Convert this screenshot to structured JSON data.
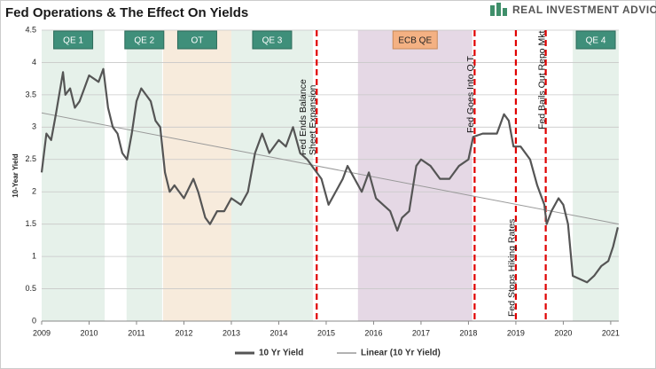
{
  "chart_data": {
    "type": "line",
    "title": "Fed Operations & The Effect On Yields",
    "logo": "REAL INVESTMENT ADVICE",
    "y_label": "10-Year Yield",
    "xlim": [
      2009,
      2021.17
    ],
    "xticks": [
      2009,
      2010,
      2011,
      2012,
      2013,
      2014,
      2015,
      2016,
      2017,
      2018,
      2019,
      2020,
      2021
    ],
    "ylim": [
      0,
      4.5
    ],
    "yticks": [
      0,
      0.5,
      1,
      1.5,
      2,
      2.5,
      3,
      3.5,
      4,
      4.5
    ],
    "grid": true,
    "regions": [
      {
        "label": "QE 1",
        "start": 2009.0,
        "end": 2010.33,
        "color": "#e6f1ea"
      },
      {
        "label": "QE 2",
        "start": 2010.79,
        "end": 2011.54,
        "color": "#e6f1ea"
      },
      {
        "label": "OT",
        "start": 2011.56,
        "end": 2013.0,
        "color": "#f7ebdc"
      },
      {
        "label": "QE 3",
        "start": 2013.0,
        "end": 2014.72,
        "color": "#e6f1ea"
      },
      {
        "label": "ECB QE",
        "start": 2015.67,
        "end": 2018.08,
        "color": "#e5d8e5"
      },
      {
        "label": "QE 4",
        "start": 2020.2,
        "end": 2021.17,
        "color": "#e6f1ea"
      }
    ],
    "events": [
      {
        "x": 2014.8,
        "lines": [
          "Fed Ends Balance",
          "Sheet Expansion"
        ]
      },
      {
        "x": 2018.13,
        "lines": [
          "Fed Goes Into Q.T."
        ]
      },
      {
        "x": 2019.0,
        "lines": [
          "Fed Stops Hiking Rates"
        ]
      },
      {
        "x": 2019.63,
        "lines": [
          "Fed Bails Out Repo Mkt"
        ]
      }
    ],
    "series": [
      {
        "name": "10 Yr Yield",
        "color": "#555555",
        "x": [
          2009.0,
          2009.1,
          2009.2,
          2009.3,
          2009.45,
          2009.5,
          2009.6,
          2009.7,
          2009.8,
          2009.9,
          2010.0,
          2010.2,
          2010.3,
          2010.4,
          2010.5,
          2010.6,
          2010.7,
          2010.8,
          2010.9,
          2011.0,
          2011.1,
          2011.2,
          2011.3,
          2011.4,
          2011.5,
          2011.6,
          2011.7,
          2011.8,
          2011.9,
          2012.0,
          2012.2,
          2012.3,
          2012.45,
          2012.55,
          2012.7,
          2012.85,
          2013.0,
          2013.2,
          2013.35,
          2013.5,
          2013.65,
          2013.8,
          2014.0,
          2014.15,
          2014.3,
          2014.45,
          2014.6,
          2014.8,
          2014.9,
          2015.05,
          2015.2,
          2015.35,
          2015.45,
          2015.6,
          2015.75,
          2015.9,
          2016.05,
          2016.2,
          2016.35,
          2016.5,
          2016.6,
          2016.75,
          2016.9,
          2017.0,
          2017.2,
          2017.4,
          2017.6,
          2017.8,
          2018.0,
          2018.1,
          2018.3,
          2018.45,
          2018.6,
          2018.75,
          2018.85,
          2018.95,
          2019.1,
          2019.3,
          2019.45,
          2019.6,
          2019.65,
          2019.75,
          2019.9,
          2020.0,
          2020.1,
          2020.2,
          2020.35,
          2020.5,
          2020.65,
          2020.8,
          2020.95,
          2021.05,
          2021.15
        ],
        "values": [
          2.3,
          2.9,
          2.8,
          3.2,
          3.85,
          3.5,
          3.6,
          3.3,
          3.4,
          3.6,
          3.8,
          3.7,
          3.9,
          3.3,
          3.0,
          2.9,
          2.6,
          2.5,
          2.9,
          3.4,
          3.6,
          3.5,
          3.4,
          3.1,
          3.0,
          2.3,
          2.0,
          2.1,
          2.0,
          1.9,
          2.2,
          2.0,
          1.6,
          1.5,
          1.7,
          1.7,
          1.9,
          1.8,
          2.0,
          2.6,
          2.9,
          2.6,
          2.8,
          2.7,
          3.0,
          2.6,
          2.5,
          2.3,
          2.2,
          1.8,
          2.0,
          2.2,
          2.4,
          2.2,
          2.0,
          2.3,
          1.9,
          1.8,
          1.7,
          1.4,
          1.6,
          1.7,
          2.4,
          2.5,
          2.4,
          2.2,
          2.2,
          2.4,
          2.5,
          2.85,
          2.9,
          2.9,
          2.9,
          3.2,
          3.1,
          2.7,
          2.7,
          2.5,
          2.1,
          1.8,
          1.5,
          1.7,
          1.9,
          1.8,
          1.5,
          0.7,
          0.65,
          0.6,
          0.7,
          0.85,
          0.93,
          1.15,
          1.45
        ]
      },
      {
        "name": "Linear (10 Yr Yield)",
        "color": "#999999",
        "x": [
          2009,
          2021.17
        ],
        "values": [
          3.22,
          1.5
        ]
      }
    ]
  }
}
